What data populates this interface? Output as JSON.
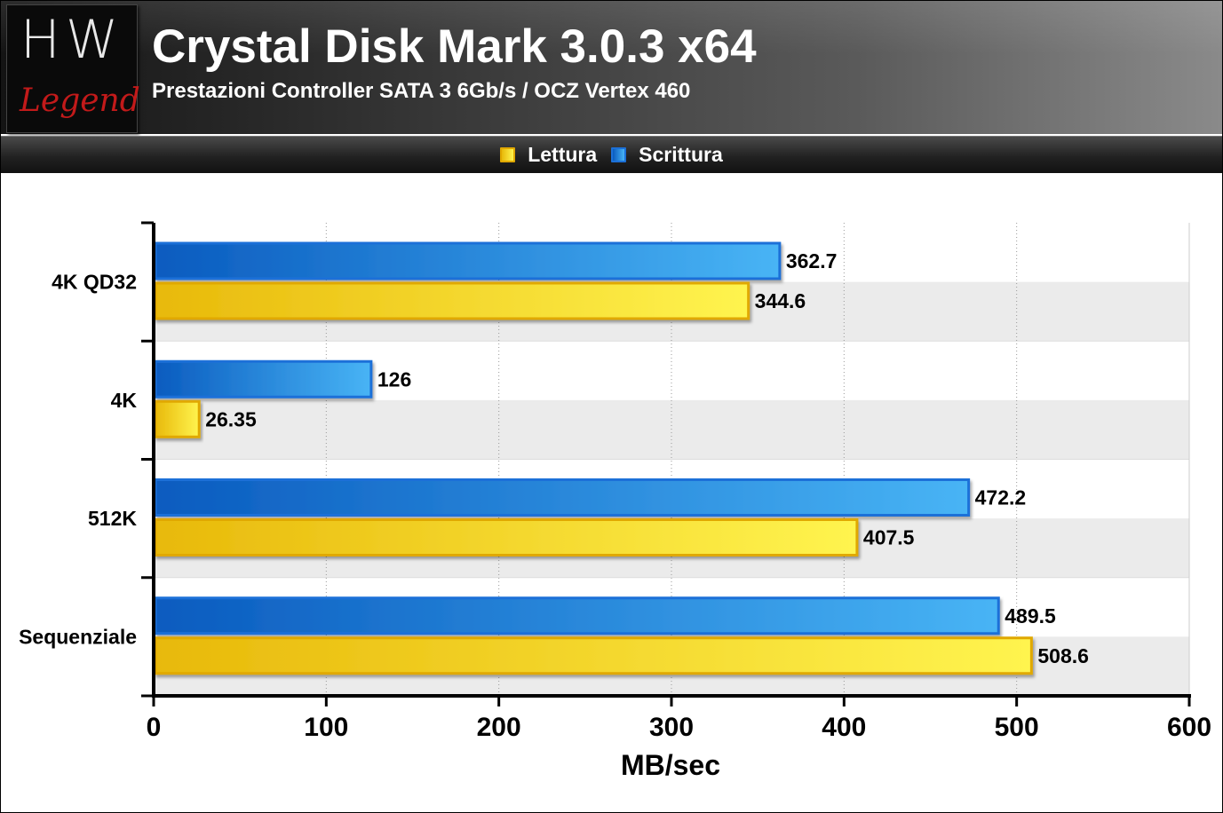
{
  "header": {
    "logo_top": "HW",
    "logo_bottom": "Legend",
    "title": "Crystal Disk Mark 3.0.3 x64",
    "subtitle": "Prestazioni Controller SATA 3 6Gb/s / OCZ Vertex 460"
  },
  "legend": {
    "read_label": "Lettura",
    "write_label": "Scrittura"
  },
  "colors": {
    "read_light": "#fff44f",
    "read_dark": "#e8b90a",
    "read_border": "#e0a800",
    "write_light": "#48b4f5",
    "write_dark": "#0a5bbf",
    "write_border": "#1c70d8",
    "band": "#ebebeb"
  },
  "chart_data": {
    "type": "bar",
    "orientation": "horizontal",
    "categories": [
      "4K QD32",
      "4K",
      "512K",
      "Sequenziale"
    ],
    "series": [
      {
        "name": "Scrittura",
        "values": [
          362.7,
          126,
          472.2,
          489.5
        ]
      },
      {
        "name": "Lettura",
        "values": [
          344.6,
          26.35,
          407.5,
          508.6
        ]
      }
    ],
    "value_labels": {
      "Scrittura": [
        "362.7",
        "126",
        "472.2",
        "489.5"
      ],
      "Lettura": [
        "344.6",
        "26.35",
        "407.5",
        "508.6"
      ]
    },
    "xlabel": "MB/sec",
    "xlim": [
      0,
      600
    ],
    "xticks": [
      0,
      100,
      200,
      300,
      400,
      500,
      600
    ],
    "xtick_labels": [
      "0",
      "100",
      "200",
      "300",
      "400",
      "500",
      "600"
    ],
    "grid": "vertical dotted",
    "legend_position": "top"
  }
}
